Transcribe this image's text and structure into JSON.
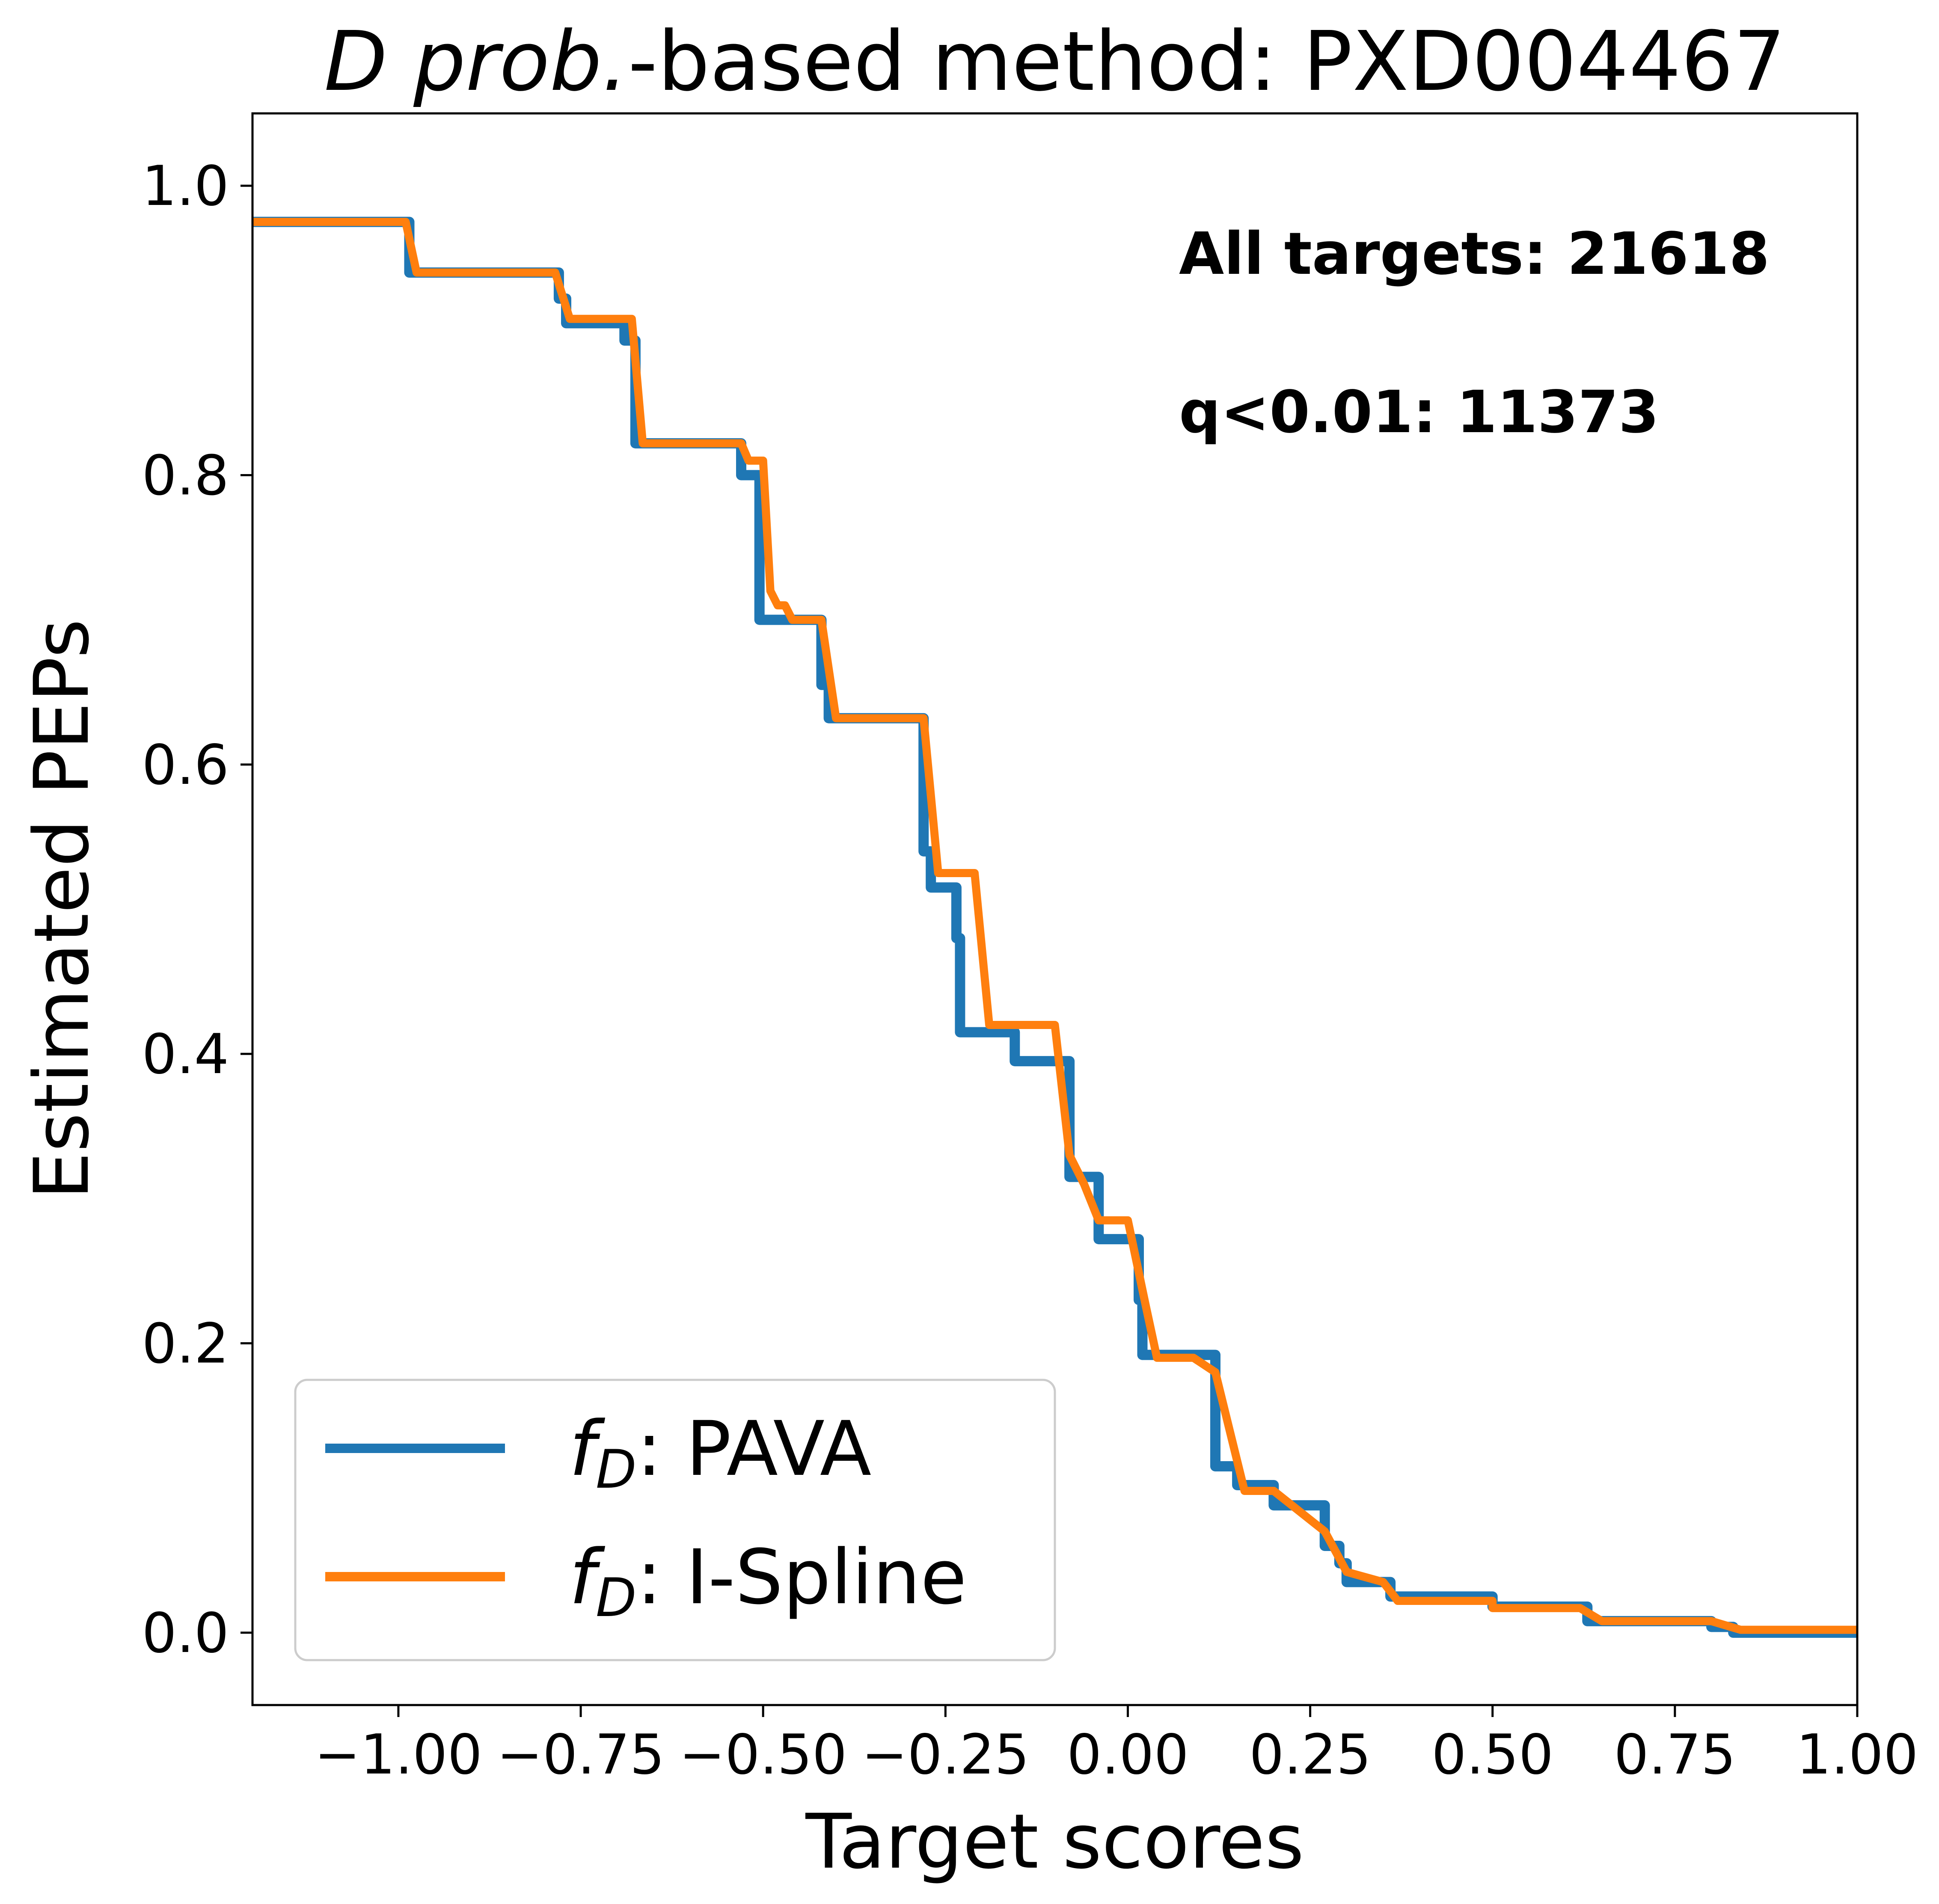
{
  "chart_data": {
    "type": "line",
    "title": {
      "italic_part": "D prob.",
      "rest": "-based method: PXD004467"
    },
    "xlabel": "Target scores",
    "ylabel": "Estimated PEPs",
    "xlim": [
      -1.2,
      1.0
    ],
    "ylim": [
      -0.05,
      1.05
    ],
    "x_ticks": [
      -1.0,
      -0.75,
      -0.5,
      -0.25,
      0.0,
      0.25,
      0.5,
      0.75,
      1.0
    ],
    "x_tick_labels": [
      "−1.00",
      "−0.75",
      "−0.50",
      "−0.25",
      "0.00",
      "0.25",
      "0.50",
      "0.75",
      "1.00"
    ],
    "y_ticks": [
      0.0,
      0.2,
      0.4,
      0.6,
      0.8,
      1.0
    ],
    "y_tick_labels": [
      "0.0",
      "0.2",
      "0.4",
      "0.6",
      "0.8",
      "1.0"
    ],
    "grid": false,
    "legend_position": "lower-left",
    "annotations": [
      "All targets: 21618",
      "q<0.01: 11373"
    ],
    "series": [
      {
        "name": "PAVA",
        "legend_label": {
          "var": "f",
          "sub": "D",
          "text": ": PAVA"
        },
        "color": "#1f77b4",
        "step": true,
        "points": [
          [
            -1.2,
            0.975
          ],
          [
            -0.985,
            0.975
          ],
          [
            -0.985,
            0.94
          ],
          [
            -0.78,
            0.94
          ],
          [
            -0.78,
            0.922
          ],
          [
            -0.77,
            0.922
          ],
          [
            -0.77,
            0.905
          ],
          [
            -0.69,
            0.905
          ],
          [
            -0.69,
            0.893
          ],
          [
            -0.675,
            0.893
          ],
          [
            -0.675,
            0.822
          ],
          [
            -0.53,
            0.822
          ],
          [
            -0.53,
            0.8
          ],
          [
            -0.505,
            0.8
          ],
          [
            -0.505,
            0.7
          ],
          [
            -0.42,
            0.7
          ],
          [
            -0.42,
            0.655
          ],
          [
            -0.41,
            0.655
          ],
          [
            -0.41,
            0.632
          ],
          [
            -0.28,
            0.632
          ],
          [
            -0.28,
            0.54
          ],
          [
            -0.27,
            0.54
          ],
          [
            -0.27,
            0.515
          ],
          [
            -0.235,
            0.515
          ],
          [
            -0.235,
            0.48
          ],
          [
            -0.23,
            0.48
          ],
          [
            -0.23,
            0.415
          ],
          [
            -0.155,
            0.415
          ],
          [
            -0.155,
            0.395
          ],
          [
            -0.08,
            0.395
          ],
          [
            -0.08,
            0.315
          ],
          [
            -0.04,
            0.315
          ],
          [
            -0.04,
            0.272
          ],
          [
            0.015,
            0.272
          ],
          [
            0.015,
            0.23
          ],
          [
            0.02,
            0.23
          ],
          [
            0.02,
            0.192
          ],
          [
            0.12,
            0.192
          ],
          [
            0.12,
            0.115
          ],
          [
            0.15,
            0.115
          ],
          [
            0.15,
            0.102
          ],
          [
            0.2,
            0.102
          ],
          [
            0.2,
            0.088
          ],
          [
            0.27,
            0.088
          ],
          [
            0.27,
            0.06
          ],
          [
            0.29,
            0.06
          ],
          [
            0.29,
            0.048
          ],
          [
            0.3,
            0.048
          ],
          [
            0.3,
            0.035
          ],
          [
            0.36,
            0.035
          ],
          [
            0.36,
            0.025
          ],
          [
            0.5,
            0.025
          ],
          [
            0.5,
            0.018
          ],
          [
            0.63,
            0.018
          ],
          [
            0.63,
            0.008
          ],
          [
            0.8,
            0.008
          ],
          [
            0.8,
            0.004
          ],
          [
            0.83,
            0.004
          ],
          [
            0.83,
            0.0
          ],
          [
            1.0,
            0.0
          ]
        ]
      },
      {
        "name": "I-Spline",
        "legend_label": {
          "var": "f",
          "sub": "D",
          "text": ": I-Spline"
        },
        "color": "#ff7f0e",
        "step": false,
        "points": [
          [
            -1.2,
            0.975
          ],
          [
            -0.99,
            0.975
          ],
          [
            -0.975,
            0.94
          ],
          [
            -0.785,
            0.94
          ],
          [
            -0.765,
            0.908
          ],
          [
            -0.68,
            0.908
          ],
          [
            -0.665,
            0.822
          ],
          [
            -0.53,
            0.822
          ],
          [
            -0.52,
            0.81
          ],
          [
            -0.5,
            0.81
          ],
          [
            -0.49,
            0.72
          ],
          [
            -0.48,
            0.71
          ],
          [
            -0.47,
            0.71
          ],
          [
            -0.46,
            0.7
          ],
          [
            -0.42,
            0.7
          ],
          [
            -0.4,
            0.632
          ],
          [
            -0.28,
            0.632
          ],
          [
            -0.26,
            0.525
          ],
          [
            -0.21,
            0.525
          ],
          [
            -0.19,
            0.42
          ],
          [
            -0.1,
            0.42
          ],
          [
            -0.08,
            0.33
          ],
          [
            -0.06,
            0.31
          ],
          [
            -0.04,
            0.285
          ],
          [
            0.0,
            0.285
          ],
          [
            0.025,
            0.225
          ],
          [
            0.04,
            0.19
          ],
          [
            0.09,
            0.19
          ],
          [
            0.12,
            0.18
          ],
          [
            0.16,
            0.098
          ],
          [
            0.2,
            0.098
          ],
          [
            0.24,
            0.082
          ],
          [
            0.27,
            0.07
          ],
          [
            0.3,
            0.042
          ],
          [
            0.35,
            0.035
          ],
          [
            0.37,
            0.022
          ],
          [
            0.5,
            0.022
          ],
          [
            0.5,
            0.017
          ],
          [
            0.62,
            0.017
          ],
          [
            0.65,
            0.008
          ],
          [
            0.8,
            0.008
          ],
          [
            0.84,
            0.002
          ],
          [
            1.0,
            0.002
          ]
        ]
      }
    ]
  }
}
